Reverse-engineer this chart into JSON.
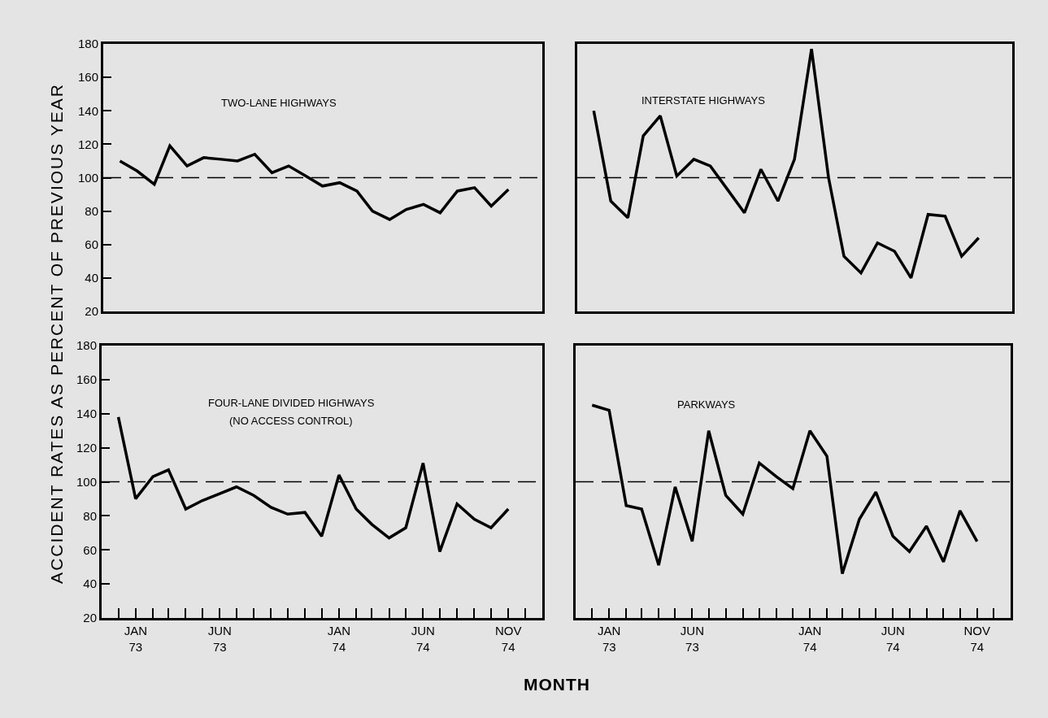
{
  "chart_data": [
    {
      "type": "line",
      "title": "TWO-LANE HIGHWAYS",
      "ylabel": "ACCIDENT RATES AS PERCENT OF PREVIOUS YEAR",
      "color": "#000000",
      "line_style": "solid",
      "marker": "none",
      "tick_labels": "y",
      "x": [
        "1972-12",
        "1973-01",
        "1973-02",
        "1973-03",
        "1973-04",
        "1973-05",
        "1973-06",
        "1973-07",
        "1973-08",
        "1973-09",
        "1973-10",
        "1973-11",
        "1973-12",
        "1974-01",
        "1974-02",
        "1974-03",
        "1974-04",
        "1974-05",
        "1974-06",
        "1974-07",
        "1974-08",
        "1974-09",
        "1974-10",
        "1974-11"
      ],
      "values": [
        110,
        104,
        96,
        119,
        107,
        112,
        111,
        110,
        114,
        103,
        107,
        101,
        95,
        97,
        92,
        80,
        75,
        81,
        84,
        79,
        92,
        94,
        83,
        93
      ],
      "xlim": [
        "1972-11",
        "1975-01"
      ],
      "ylim": [
        20,
        180
      ],
      "yticks": [
        20,
        40,
        60,
        80,
        100,
        120,
        140,
        160,
        180
      ],
      "ref_lines": [
        {
          "axis": "y",
          "value": 100,
          "line_style": "dashed"
        }
      ]
    },
    {
      "type": "line",
      "title": "INTERSTATE HIGHWAYS",
      "color": "#000000",
      "line_style": "solid",
      "marker": "none",
      "tick_labels": false,
      "x": [
        "1972-12",
        "1973-01",
        "1973-02",
        "1973-03",
        "1973-04",
        "1973-05",
        "1973-06",
        "1973-07",
        "1973-08",
        "1973-09",
        "1973-10",
        "1973-11",
        "1973-12",
        "1974-01",
        "1974-02",
        "1974-03",
        "1974-04",
        "1974-05",
        "1974-06",
        "1974-07",
        "1974-08",
        "1974-09",
        "1974-10",
        "1974-11"
      ],
      "values": [
        140,
        86,
        76,
        125,
        137,
        101,
        111,
        107,
        93,
        79,
        105,
        86,
        111,
        177,
        100,
        53,
        43,
        61,
        56,
        40,
        78,
        77,
        53,
        64
      ],
      "xlim": [
        "1972-11",
        "1975-01"
      ],
      "ylim": [
        20,
        180
      ],
      "ref_lines": [
        {
          "axis": "y",
          "value": 100,
          "line_style": "dashed"
        }
      ]
    },
    {
      "type": "line",
      "title": "FOUR-LANE DIVIDED HIGHWAYS",
      "subtitle": "(NO ACCESS CONTROL)",
      "xlabel": "MONTH",
      "color": "#000000",
      "line_style": "solid",
      "marker": "none",
      "x": [
        "1972-12",
        "1973-01",
        "1973-02",
        "1973-03",
        "1973-04",
        "1973-05",
        "1973-06",
        "1973-07",
        "1973-08",
        "1973-09",
        "1973-10",
        "1973-11",
        "1973-12",
        "1974-01",
        "1974-02",
        "1974-03",
        "1974-04",
        "1974-05",
        "1974-06",
        "1974-07",
        "1974-08",
        "1974-09",
        "1974-10",
        "1974-11"
      ],
      "values": [
        138,
        90,
        103,
        107,
        84,
        89,
        93,
        97,
        92,
        85,
        81,
        82,
        68,
        104,
        84,
        75,
        67,
        73,
        111,
        59,
        87,
        78,
        73,
        84
      ],
      "xlim": [
        "1972-11",
        "1975-01"
      ],
      "ylim": [
        20,
        180
      ],
      "yticks": [
        20,
        40,
        60,
        80,
        100,
        120,
        140,
        160,
        180
      ],
      "xticks": [
        {
          "value": "1972-12",
          "label": null
        },
        {
          "value": "1973-01",
          "label": "JAN\n73"
        },
        {
          "value": "1973-02",
          "label": null
        },
        {
          "value": "1973-03",
          "label": null
        },
        {
          "value": "1973-04",
          "label": null
        },
        {
          "value": "1973-05",
          "label": null
        },
        {
          "value": "1973-06",
          "label": "JUN\n73"
        },
        {
          "value": "1973-07",
          "label": null
        },
        {
          "value": "1973-08",
          "label": null
        },
        {
          "value": "1973-09",
          "label": null
        },
        {
          "value": "1973-10",
          "label": null
        },
        {
          "value": "1973-11",
          "label": null
        },
        {
          "value": "1973-12",
          "label": null
        },
        {
          "value": "1974-01",
          "label": "JAN\n74"
        },
        {
          "value": "1974-02",
          "label": null
        },
        {
          "value": "1974-03",
          "label": null
        },
        {
          "value": "1974-04",
          "label": null
        },
        {
          "value": "1974-05",
          "label": null
        },
        {
          "value": "1974-06",
          "label": "JUN\n74"
        },
        {
          "value": "1974-07",
          "label": null
        },
        {
          "value": "1974-08",
          "label": null
        },
        {
          "value": "1974-09",
          "label": null
        },
        {
          "value": "1974-10",
          "label": null
        },
        {
          "value": "1974-11",
          "label": "NOV\n74"
        },
        {
          "value": "1974-12",
          "label": null
        }
      ],
      "ref_lines": [
        {
          "axis": "y",
          "value": 100,
          "line_style": "dashed"
        }
      ]
    },
    {
      "type": "line",
      "title": "PARKWAYS",
      "color": "#000000",
      "line_style": "solid",
      "marker": "none",
      "tick_labels": "x",
      "x": [
        "1972-12",
        "1973-01",
        "1973-02",
        "1973-03",
        "1973-04",
        "1973-05",
        "1973-06",
        "1973-07",
        "1973-08",
        "1973-09",
        "1973-10",
        "1973-11",
        "1973-12",
        "1974-01",
        "1974-02",
        "1974-03",
        "1974-04",
        "1974-05",
        "1974-06",
        "1974-07",
        "1974-08",
        "1974-09",
        "1974-10",
        "1974-11"
      ],
      "values": [
        145,
        142,
        86,
        84,
        51,
        97,
        65,
        130,
        92,
        81,
        111,
        103,
        96,
        130,
        115,
        46,
        78,
        94,
        68,
        59,
        74,
        53,
        83,
        65
      ],
      "xlim": [
        "1972-11",
        "1975-01"
      ],
      "ylim": [
        20,
        180
      ],
      "xticks": [
        {
          "value": "1972-12",
          "label": null
        },
        {
          "value": "1973-01",
          "label": "JAN\n73"
        },
        {
          "value": "1973-02",
          "label": null
        },
        {
          "value": "1973-03",
          "label": null
        },
        {
          "value": "1973-04",
          "label": null
        },
        {
          "value": "1973-05",
          "label": null
        },
        {
          "value": "1973-06",
          "label": "JUN\n73"
        },
        {
          "value": "1973-07",
          "label": null
        },
        {
          "value": "1973-08",
          "label": null
        },
        {
          "value": "1973-09",
          "label": null
        },
        {
          "value": "1973-10",
          "label": null
        },
        {
          "value": "1973-11",
          "label": null
        },
        {
          "value": "1973-12",
          "label": null
        },
        {
          "value": "1974-01",
          "label": "JAN\n74"
        },
        {
          "value": "1974-02",
          "label": null
        },
        {
          "value": "1974-03",
          "label": null
        },
        {
          "value": "1974-04",
          "label": null
        },
        {
          "value": "1974-05",
          "label": null
        },
        {
          "value": "1974-06",
          "label": "JUN\n74"
        },
        {
          "value": "1974-07",
          "label": null
        },
        {
          "value": "1974-08",
          "label": null
        },
        {
          "value": "1974-09",
          "label": null
        },
        {
          "value": "1974-10",
          "label": null
        },
        {
          "value": "1974-11",
          "label": "NOV\n74"
        },
        {
          "value": "1974-12",
          "label": null
        }
      ],
      "ref_lines": [
        {
          "axis": "y",
          "value": 100,
          "line_style": "dashed"
        }
      ]
    }
  ]
}
